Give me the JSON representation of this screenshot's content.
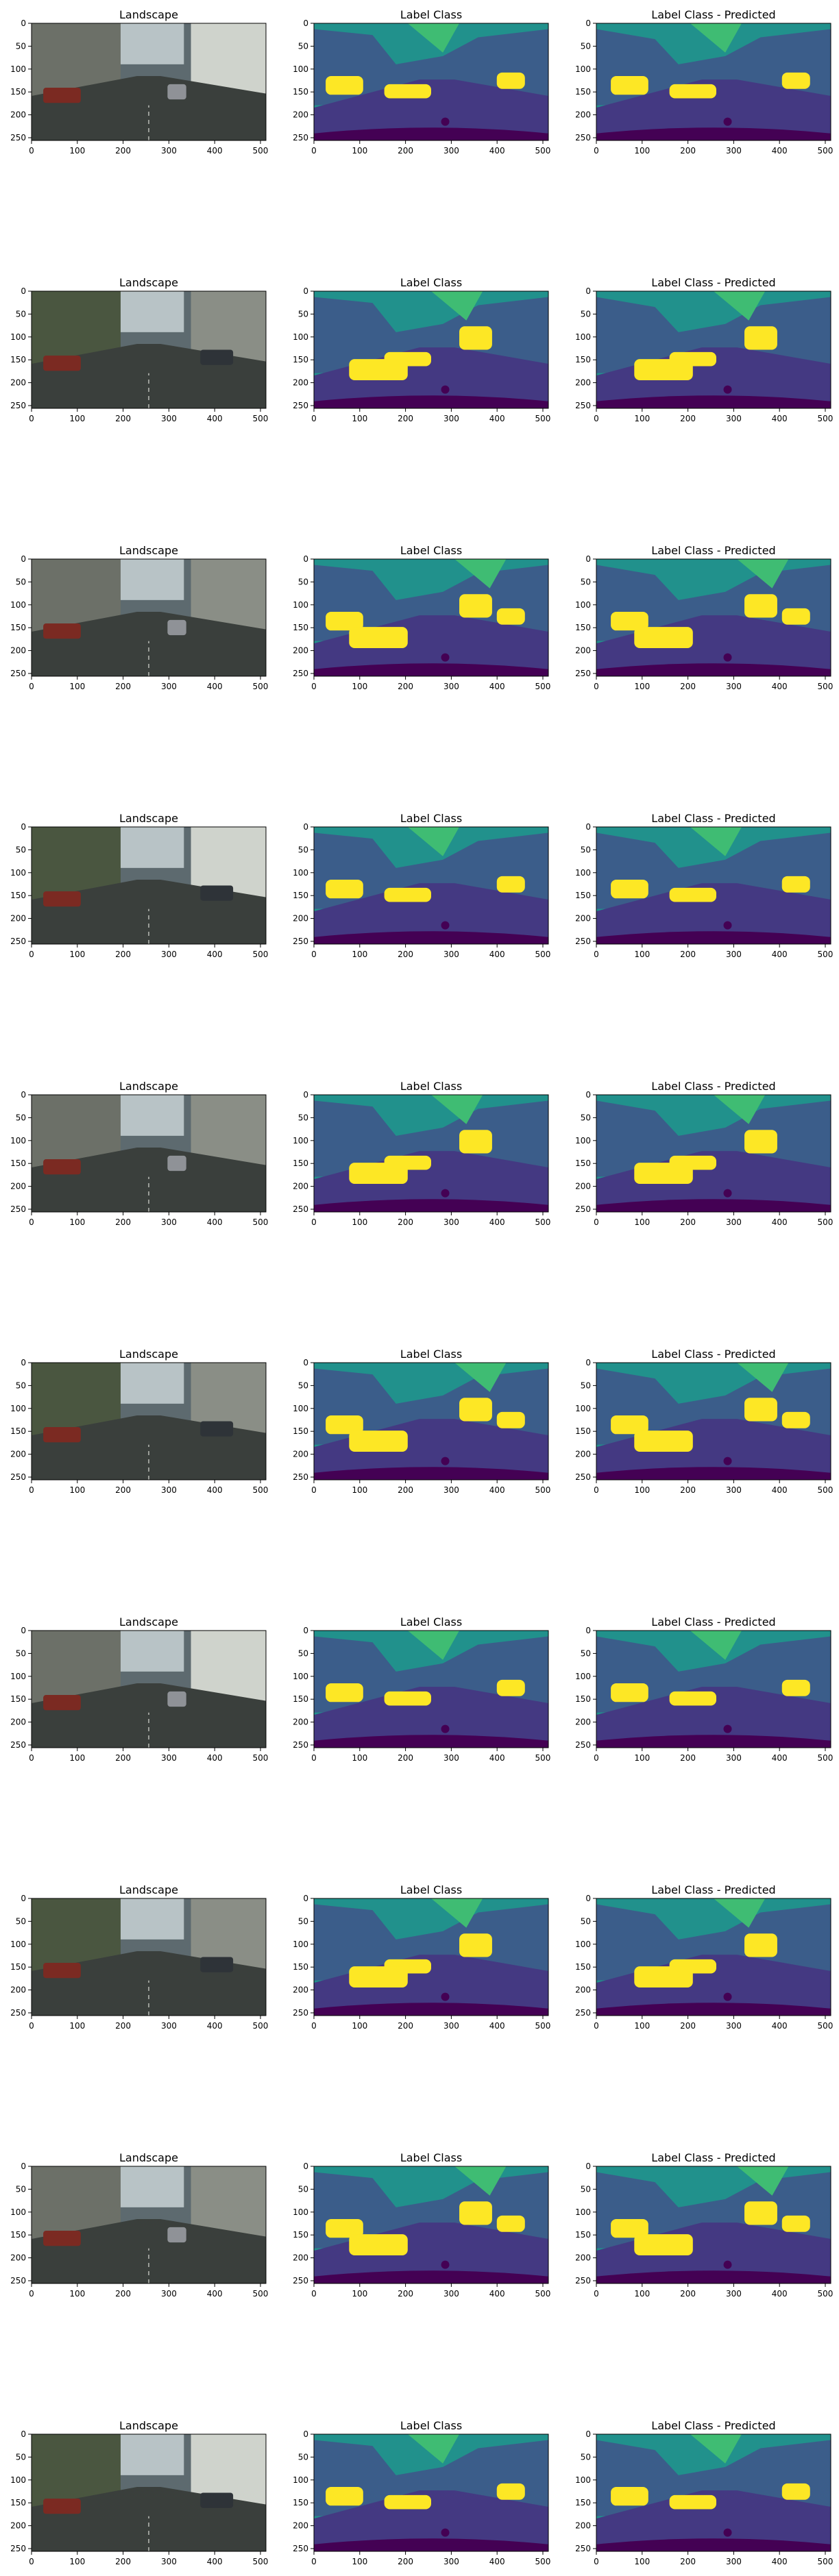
{
  "chart_data": {
    "type": "image-grid",
    "column_titles": [
      "Landscape",
      "Label Class",
      "Label Class - Predicted"
    ],
    "row_count": 10,
    "xticks": [
      0,
      100,
      200,
      300,
      400,
      500
    ],
    "yticks": [
      0,
      50,
      100,
      150,
      200,
      250
    ],
    "xlim": [
      0,
      512
    ],
    "ylim": [
      256,
      0
    ],
    "colors": {
      "sky_teal": "#21918c",
      "building_blue": "#3b5d8a",
      "road_purple": "#443982",
      "dark_purple": "#440154",
      "car_yellow": "#fde725",
      "veg_green": "#3fbc73"
    },
    "panels": [
      {
        "row": 1,
        "col": 1,
        "title": "Landscape",
        "content": "photo"
      },
      {
        "row": 1,
        "col": 2,
        "title": "Label Class",
        "content": "segmentation mask"
      },
      {
        "row": 1,
        "col": 3,
        "title": "Label Class - Predicted",
        "content": "segmentation mask"
      }
    ]
  }
}
